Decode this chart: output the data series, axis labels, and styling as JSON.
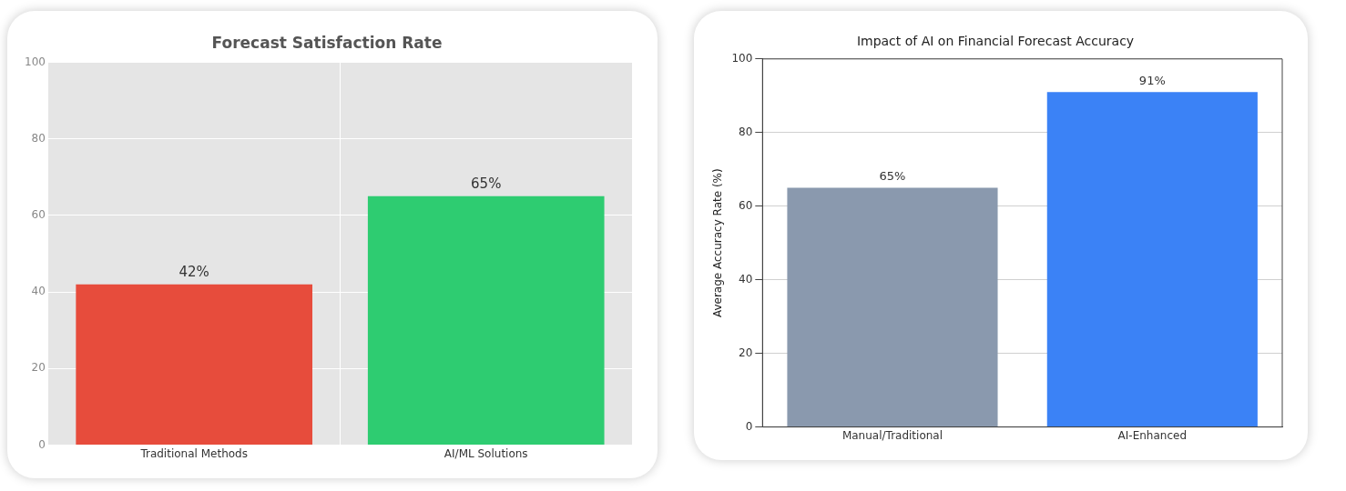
{
  "chart_data": [
    {
      "type": "bar",
      "title": "Forecast Satisfaction Rate",
      "categories": [
        "Traditional Methods",
        "AI/ML Solutions"
      ],
      "values": [
        42,
        65
      ],
      "colors": [
        "#e74c3c",
        "#2ecc71"
      ],
      "value_labels": [
        "42%",
        "65%"
      ],
      "ylim": [
        0,
        100
      ],
      "yticks": [
        0,
        20,
        40,
        60,
        80,
        100
      ],
      "grid": true
    },
    {
      "type": "bar",
      "title": "Impact of AI on Financial Forecast Accuracy",
      "ylabel": "Average Accuracy Rate (%)",
      "categories": [
        "Manual/Traditional",
        "AI-Enhanced"
      ],
      "values": [
        65,
        91
      ],
      "colors": [
        "#8a99ae",
        "#3b82f6"
      ],
      "value_labels": [
        "65%",
        "91%"
      ],
      "ylim": [
        0,
        100
      ],
      "yticks": [
        0,
        20,
        40,
        60,
        80,
        100
      ],
      "grid": "y"
    }
  ]
}
